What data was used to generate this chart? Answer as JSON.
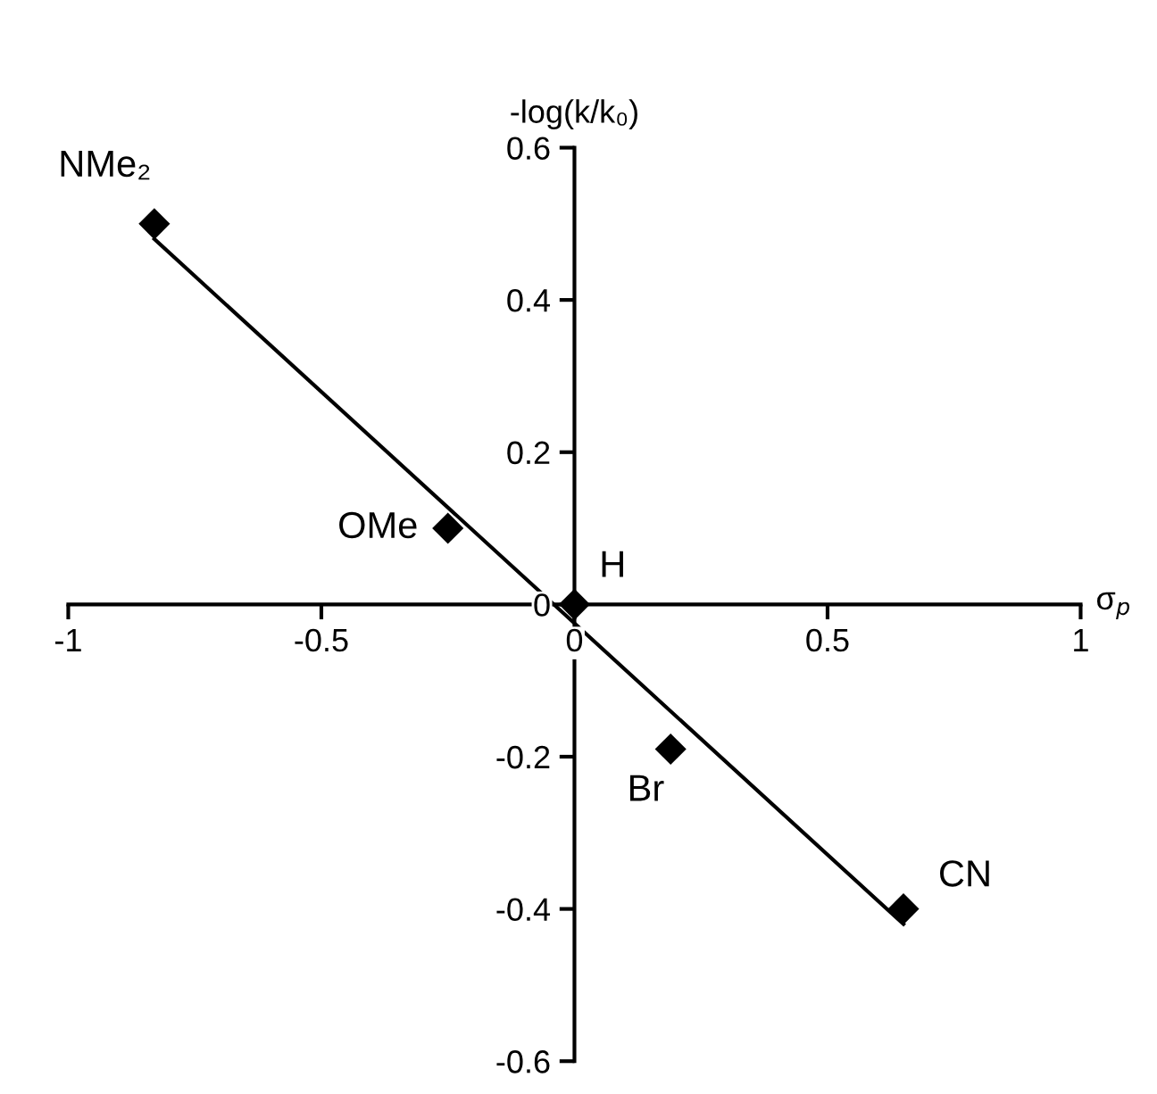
{
  "chart_data": {
    "type": "scatter",
    "xlabel": "σ$_{p}$",
    "ylabel": "-log(k/k₀)",
    "series": [
      {
        "color": "#000000",
        "marker": "diamond",
        "x": [
          -0.83,
          -0.25,
          0,
          0.19,
          0.65
        ],
        "values": [
          0.5,
          0.1,
          0,
          -0.19,
          -0.4
        ]
      },
      {
        "type": "line",
        "color": "#000000",
        "marker": "none",
        "line_style": "solid",
        "x": [
          -0.83,
          0.65
        ],
        "values": [
          0.48,
          -0.42
        ]
      }
    ],
    "annotations": [
      {
        "text": "NMe₂",
        "x": -0.83,
        "y": 0.5
      },
      {
        "text": "OMe",
        "x": -0.25,
        "y": 0.1
      },
      {
        "text": "H",
        "x": 0,
        "y": 0
      },
      {
        "text": "Br",
        "x": 0.19,
        "y": -0.19
      },
      {
        "text": "CN",
        "x": 0.65,
        "y": -0.4
      }
    ],
    "xlim": [
      -1,
      1
    ],
    "ylim": [
      -0.6,
      0.6
    ],
    "xticks": [
      -1,
      -0.5,
      0,
      0.5,
      1
    ],
    "yticks": [
      -0.6,
      -0.4,
      -0.2,
      0,
      0.2,
      0.4,
      0.6
    ],
    "grid": false,
    "legend": false
  }
}
